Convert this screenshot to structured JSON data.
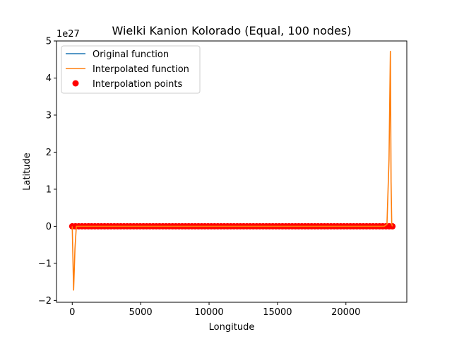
{
  "chart_data": {
    "type": "line",
    "title": "Wielki Kanion Kolorado (Equal, 100 nodes)",
    "xlabel": "Longitude",
    "ylabel": "Latitude",
    "y_offset_label": "1e27",
    "xlim": [
      -1150,
      24450
    ],
    "ylim": [
      -2.05,
      5.0
    ],
    "x_ticks": [
      0,
      5000,
      10000,
      15000,
      20000
    ],
    "x_tick_labels": [
      "0",
      "5000",
      "10000",
      "15000",
      "20000"
    ],
    "y_ticks": [
      -2,
      -1,
      0,
      1,
      2,
      3,
      4,
      5
    ],
    "y_tick_labels": [
      "−2",
      "−1",
      "0",
      "1",
      "2",
      "3",
      "4",
      "5"
    ],
    "grid": false,
    "legend_position": "top-left",
    "colors": {
      "original": "#1f77b4",
      "interpolated": "#ff7f0e",
      "points": "#ff0000"
    },
    "series": [
      {
        "name": "Original function",
        "kind": "line",
        "x": [
          0,
          23400
        ],
        "y": [
          0,
          0
        ]
      },
      {
        "name": "Interpolated function",
        "kind": "line",
        "x": [
          0,
          100,
          200,
          300,
          400,
          600,
          2000,
          10000,
          20000,
          22800,
          23000,
          23150,
          23250,
          23300,
          23350,
          23400
        ],
        "y": [
          0,
          -1.72,
          -0.6,
          0,
          0,
          0,
          0,
          0,
          0,
          0,
          0.05,
          1.8,
          4.72,
          1.2,
          0.05,
          0
        ]
      },
      {
        "name": "Interpolation points",
        "kind": "scatter",
        "x_start": 0,
        "x_end": 23400,
        "count": 100,
        "y_value": 0
      }
    ]
  }
}
